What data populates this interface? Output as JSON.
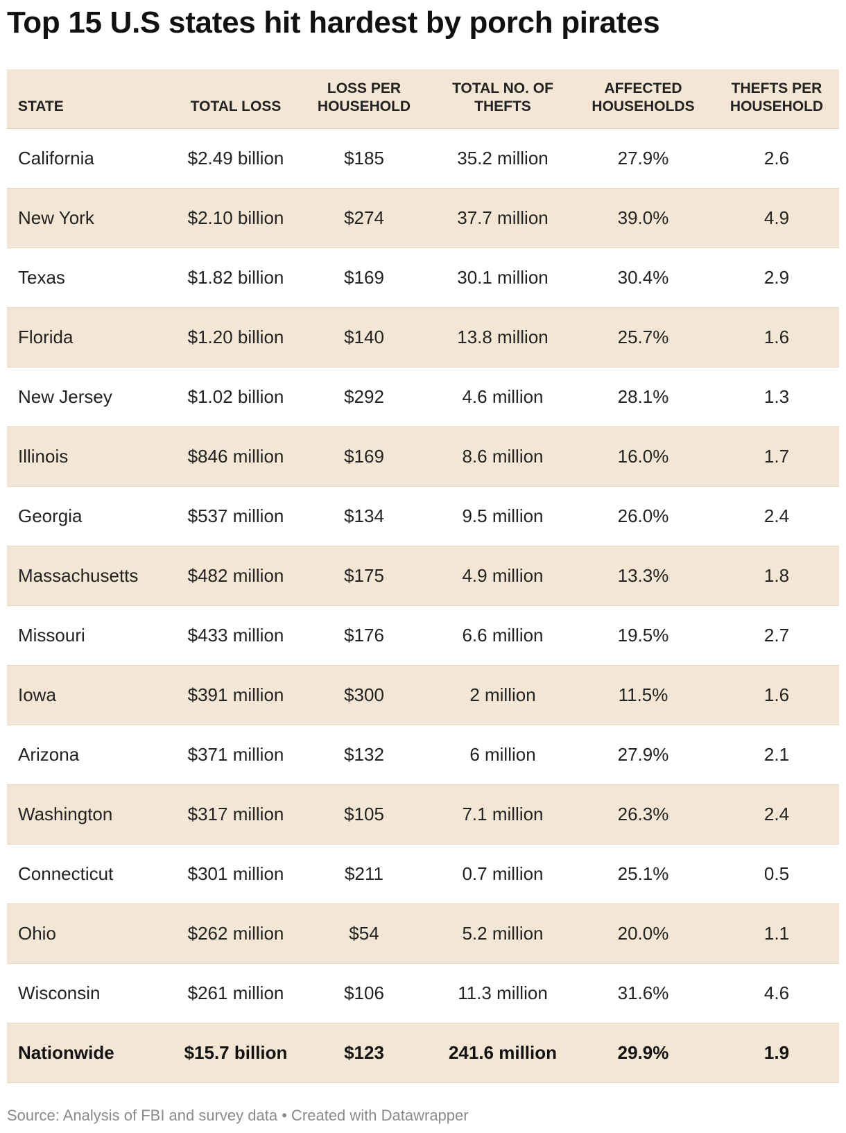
{
  "chart_data": {
    "type": "table",
    "title": "Top 15 U.S states hit hardest by porch pirates",
    "columns": [
      "STATE",
      "TOTAL LOSS",
      "LOSS PER HOUSEHOLD",
      "TOTAL NO. OF THEFTS",
      "AFFECTED HOUSEHOLDS",
      "THEFTS PER HOUSEHOLD"
    ],
    "rows": [
      [
        "California",
        "$2.49 billion",
        "$185",
        "35.2 million",
        "27.9%",
        "2.6"
      ],
      [
        "New York",
        "$2.10 billion",
        "$274",
        "37.7 million",
        "39.0%",
        "4.9"
      ],
      [
        "Texas",
        "$1.82 billion",
        "$169",
        "30.1 million",
        "30.4%",
        "2.9"
      ],
      [
        "Florida",
        "$1.20 billion",
        "$140",
        "13.8 million",
        "25.7%",
        "1.6"
      ],
      [
        "New Jersey",
        "$1.02 billion",
        "$292",
        "4.6 million",
        "28.1%",
        "1.3"
      ],
      [
        "Illinois",
        "$846 million",
        "$169",
        "8.6 million",
        "16.0%",
        "1.7"
      ],
      [
        "Georgia",
        "$537 million",
        "$134",
        "9.5 million",
        "26.0%",
        "2.4"
      ],
      [
        "Massachusetts",
        "$482 million",
        "$175",
        "4.9 million",
        "13.3%",
        "1.8"
      ],
      [
        "Missouri",
        "$433 million",
        "$176",
        "6.6 million",
        "19.5%",
        "2.7"
      ],
      [
        "Iowa",
        "$391 million",
        "$300",
        "2 million",
        "11.5%",
        "1.6"
      ],
      [
        "Arizona",
        "$371 million",
        "$132",
        "6 million",
        "27.9%",
        "2.1"
      ],
      [
        "Washington",
        "$317 million",
        "$105",
        "7.1 million",
        "26.3%",
        "2.4"
      ],
      [
        "Connecticut",
        "$301 million",
        "$211",
        "0.7 million",
        "25.1%",
        "0.5"
      ],
      [
        "Ohio",
        "$262 million",
        "$54",
        "5.2 million",
        "20.0%",
        "1.1"
      ],
      [
        "Wisconsin",
        "$261 million",
        "$106",
        "11.3 million",
        "31.6%",
        "4.6"
      ]
    ],
    "total_row": [
      "Nationwide",
      "$15.7 billion",
      "$123",
      "241.6 million",
      "29.9%",
      "1.9"
    ],
    "source": "Source: Analysis of FBI and survey data • Created with Datawrapper"
  },
  "colors": {
    "band": "#f3e6d4",
    "text": "#222222",
    "source_text": "#8a8a8a"
  }
}
